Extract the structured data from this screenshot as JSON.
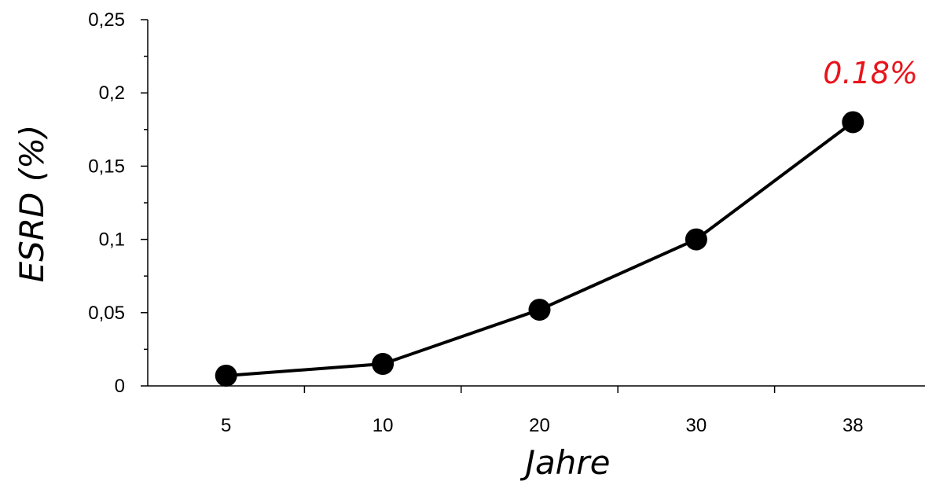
{
  "chart_data": {
    "type": "line",
    "categories": [
      "5",
      "10",
      "20",
      "30",
      "38"
    ],
    "series": [
      {
        "values": [
          0.007,
          0.015,
          0.052,
          0.1,
          0.18
        ]
      }
    ],
    "xlabel": "Jahre",
    "ylabel": "ESRD (%)",
    "ylim": [
      0,
      0.25
    ],
    "yticks": [
      "0",
      "0,05",
      "0,1",
      "0,15",
      "0,2",
      "0,25"
    ],
    "grid": false,
    "legend": "none",
    "annotation": {
      "text": "0.18%",
      "color": "#e8141c",
      "category": "38"
    },
    "colors": {
      "line": "#000000",
      "marker": "#000000"
    }
  }
}
